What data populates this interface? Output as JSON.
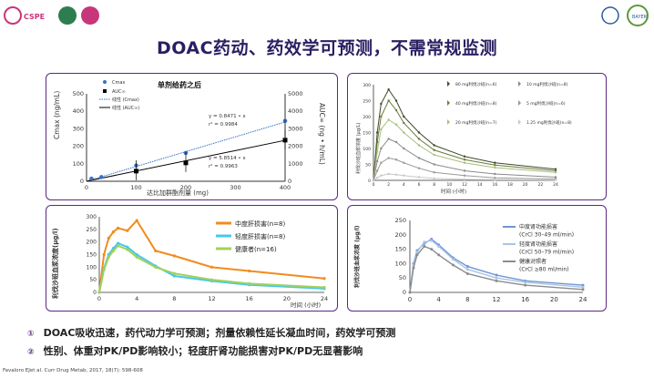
{
  "header": {
    "logo_left1": "CSPE",
    "logo_right_bayer": "BAYER",
    "title": "DOAC药动、药效学可预测，不需常规监测"
  },
  "chart1": {
    "inner_title": "单剂给药之后",
    "ylabel_left": "Cmax (ng/mL)",
    "ylabel_right": "AUC∞ (ng • h/mL)",
    "xlabel": "达比加群酯剂量 (mg)",
    "legend": [
      "Cmax",
      "AUC∞",
      "线性 (Cmax)",
      "线性 (AUC∞)"
    ],
    "eq1": "y = 0.8471 • x",
    "r1": "r² = 0.9984",
    "eq2": "y = 5.8514 • x",
    "r2": "r² = 0.9963"
  },
  "chart2": {
    "ylabel": "利伐沙班血浆浓度 (μg/L)",
    "xlabel": "时间 (小时)",
    "legend": [
      "80 mg利伐沙班(n=6)",
      "40 mg利伐沙班(n=8)",
      "20 mg利伐沙班(n=7)",
      "10 mg利伐沙班(n=8)",
      "5 mg利伐沙班(n=6)",
      "1.25 mg利伐沙班(n=8)"
    ]
  },
  "chart3": {
    "ylabel": "利伐沙班血浆浓度(μg/l)",
    "xlabel": "时间 (小时)",
    "legend": [
      "中度肝损害(n=8)",
      "轻度肝损害(n=8)",
      "健康者(n=16)"
    ]
  },
  "chart4": {
    "ylabel": "利伐沙班血浆浓度 (μg/l)",
    "legend": [
      "中度肾功能损害",
      "(CrCl 30–49 ml/min)",
      "轻度肾功能损害",
      "(CrCl 50–79 ml/min)",
      "健康对照者",
      "(CrCl ≥80 ml/min)"
    ]
  },
  "footer": {
    "point1_num": "①",
    "point1": "DOAC吸收迅速，药代动力学可预测；剂量依赖性延长凝血时间，药效学可预测",
    "point2_num": "②",
    "point2": "性别、体重对PK/PD影响较小；轻度肝肾功能损害对PK/PD无显著影响",
    "reference": "Favaloro EJet al. Curr Drug Metab, 2017, 18(7): 598-608"
  },
  "chart_data": [
    {
      "type": "scatter",
      "title": "单剂给药之后",
      "xlabel": "达比加群酯剂量 (mg)",
      "ylabel": "Cmax (ng/mL)",
      "ylabel_right": "AUC∞ (ng • h/mL)",
      "xlim": [
        0,
        400
      ],
      "ylim": [
        0,
        500
      ],
      "ylim_right": [
        0,
        5000
      ],
      "x_ticks": [
        0,
        100,
        200,
        300,
        400
      ],
      "y_ticks": [
        0,
        100,
        200,
        300,
        400,
        500
      ],
      "y_right_ticks": [
        0,
        1000,
        2000,
        3000,
        4000,
        5000
      ],
      "series": [
        {
          "name": "Cmax",
          "x": [
            10,
            30,
            100,
            200,
            400
          ],
          "y": [
            15,
            24,
            90,
            162,
            345
          ]
        },
        {
          "name": "AUC∞",
          "x": [
            100,
            200,
            400
          ],
          "y": [
            580,
            1050,
            2350
          ]
        }
      ]
    },
    {
      "type": "line",
      "xlabel": "时间 (小时)",
      "x": [
        0,
        0.5,
        1,
        2,
        3,
        4,
        6,
        8,
        12,
        16,
        24
      ],
      "xlim": [
        0,
        24
      ],
      "ylim": [
        0,
        300
      ],
      "series": [
        {
          "name": "80 mg利伐沙班(n=6)",
          "values": [
            0,
            150,
            240,
            285,
            250,
            200,
            150,
            110,
            75,
            55,
            35
          ]
        },
        {
          "name": "40 mg利伐沙班(n=8)",
          "values": [
            0,
            120,
            200,
            250,
            220,
            180,
            130,
            95,
            65,
            48,
            30
          ]
        },
        {
          "name": "20 mg利伐沙班(n=7)",
          "values": [
            0,
            90,
            160,
            190,
            175,
            150,
            110,
            80,
            55,
            40,
            25
          ]
        },
        {
          "name": "10 mg利伐沙班(n=8)",
          "values": [
            0,
            60,
            100,
            130,
            120,
            100,
            70,
            50,
            30,
            20,
            10
          ]
        },
        {
          "name": "5 mg利伐沙班(n=6)",
          "values": [
            0,
            30,
            55,
            70,
            65,
            55,
            38,
            25,
            15,
            8,
            4
          ]
        },
        {
          "name": "1.25 mg利伐沙班(n=8)",
          "values": [
            0,
            8,
            15,
            20,
            18,
            15,
            10,
            6,
            3,
            2,
            1
          ]
        }
      ]
    },
    {
      "type": "line",
      "xlabel": "时间 (小时)",
      "x": [
        0,
        0.5,
        1,
        1.5,
        2,
        3,
        4,
        6,
        8,
        12,
        16,
        24
      ],
      "xlim": [
        0,
        24
      ],
      "ylim": [
        0,
        300
      ],
      "y_ticks": [
        0,
        50,
        100,
        150,
        200,
        250,
        300
      ],
      "x_ticks": [
        0,
        4,
        8,
        12,
        16,
        20,
        24
      ],
      "series": [
        {
          "name": "中度肝损害(n=8)",
          "values": [
            0,
            150,
            215,
            240,
            255,
            245,
            285,
            165,
            145,
            100,
            85,
            55
          ]
        },
        {
          "name": "轻度肝损害(n=8)",
          "values": [
            0,
            95,
            150,
            175,
            195,
            180,
            150,
            105,
            65,
            45,
            30,
            15
          ]
        },
        {
          "name": "健康者(n=16)",
          "values": [
            0,
            90,
            140,
            165,
            185,
            170,
            140,
            100,
            75,
            50,
            35,
            20
          ]
        }
      ]
    },
    {
      "type": "line",
      "x": [
        0,
        0.5,
        1,
        2,
        3,
        4,
        6,
        8,
        12,
        16,
        24
      ],
      "xlim": [
        0,
        24
      ],
      "ylim": [
        0,
        250
      ],
      "y_ticks": [
        0,
        50,
        100,
        150,
        200,
        250
      ],
      "x_ticks": [
        0,
        4,
        8,
        12,
        16,
        20,
        24
      ],
      "series": [
        {
          "name": "中度肾功能损害",
          "values": [
            0,
            100,
            145,
            170,
            185,
            165,
            120,
            90,
            60,
            40,
            25
          ]
        },
        {
          "name": "轻度肾功能损害",
          "values": [
            0,
            95,
            140,
            175,
            180,
            160,
            115,
            80,
            50,
            35,
            18
          ]
        },
        {
          "name": "健康对照者",
          "values": [
            0,
            85,
            130,
            160,
            150,
            130,
            95,
            65,
            40,
            25,
            10
          ]
        }
      ]
    }
  ]
}
